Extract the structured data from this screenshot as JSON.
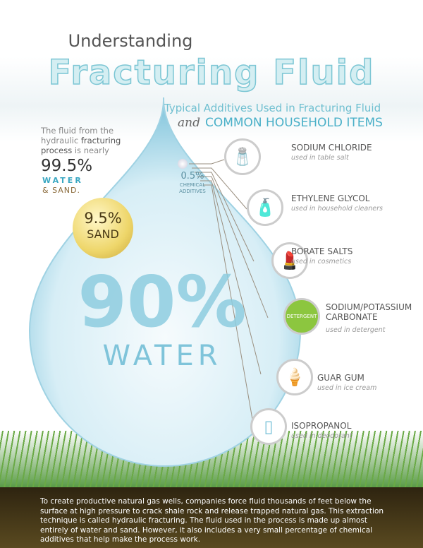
{
  "title": {
    "line1": "Understanding",
    "line2": "Fracturing Fluid"
  },
  "subtitle": {
    "line1": "Typical Additives Used in Fracturing Fluid",
    "and": "and",
    "line2": "COMMON HOUSEHOLD ITEMS"
  },
  "intro": {
    "a": "The fluid from the hydraulic ",
    "b": "fracturing process",
    "c": " is nearly",
    "pct": "99.5%",
    "water": "WATER",
    "sand": "& SAND."
  },
  "sand": {
    "pct": "9.5%",
    "label": "SAND"
  },
  "chemical": {
    "pct": "0.5%",
    "label": "CHEMICAL ADDITIVES"
  },
  "water": {
    "pct": "90%",
    "label": "WATER"
  },
  "items": [
    {
      "name": "SODIUM CHLORIDE",
      "use": "used in table salt",
      "icon": "salt-shaker-icon",
      "glyph": "🧂"
    },
    {
      "name": "ETHYLENE GLYCOL",
      "use": "used in household cleaners",
      "icon": "spray-bottle-icon",
      "glyph": "🧴"
    },
    {
      "name": "BORATE SALTS",
      "use": "used in cosmetics",
      "icon": "lipstick-icon",
      "glyph": "💄"
    },
    {
      "name": "SODIUM/POTASSIUM CARBONATE",
      "use": "used in detergent",
      "icon": "detergent-box-icon",
      "glyph": "DETERGENT"
    },
    {
      "name": "GUAR GUM",
      "use": "used in ice cream",
      "icon": "ice-cream-bar-icon",
      "glyph": "🍦"
    },
    {
      "name": "ISOPROPANOL",
      "use": "used in deodorant",
      "icon": "deodorant-icon",
      "glyph": "▯"
    }
  ],
  "description": "To create productive natural gas wells, companies force fluid thousands of feet below the surface at high pressure to crack shale rock and release trapped natural gas. This extraction technique is called hydraulic fracturing. The fluid used in the process is made up almost entirely of water and sand. However, it also includes a very small percentage of chemical additives that help make the process work."
}
